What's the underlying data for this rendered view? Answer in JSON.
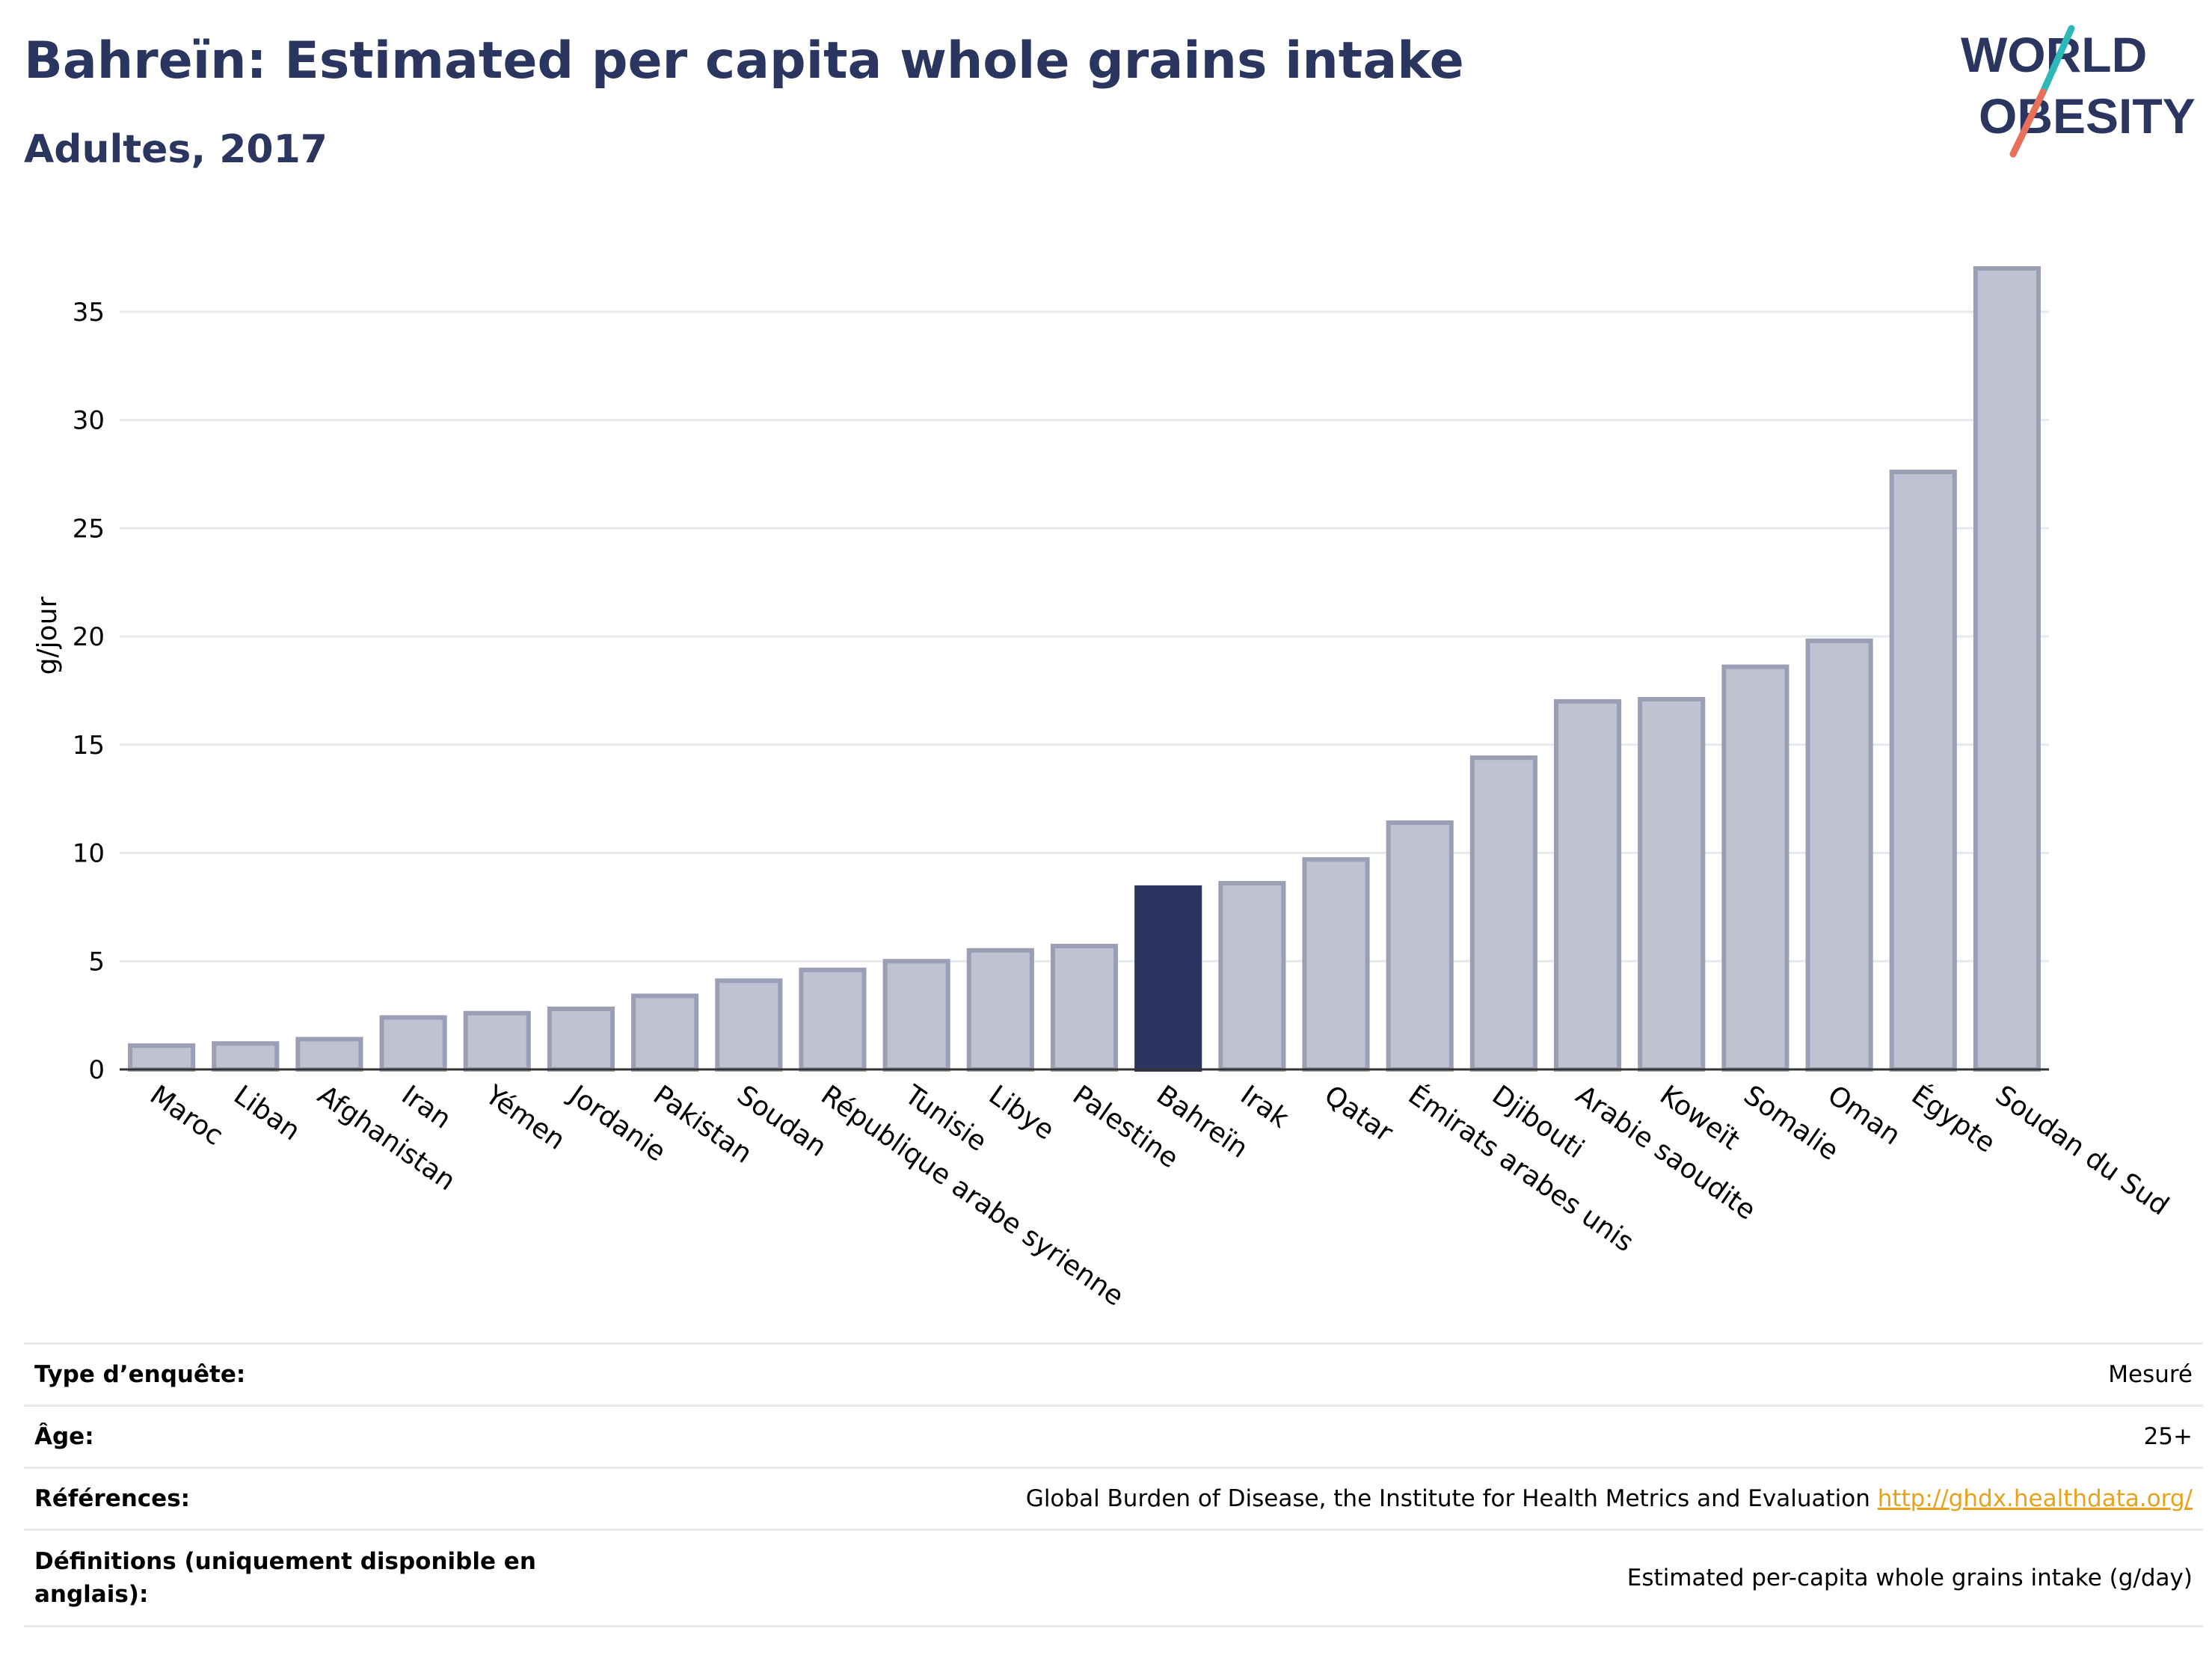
{
  "header": {
    "title": "Bahreïn: Estimated per capita whole grains intake",
    "subtitle": "Adultes, 2017"
  },
  "logo": {
    "line1": "WORLD",
    "line2": "OBESITY",
    "icon": "world-obesity-logo"
  },
  "colors": {
    "highlight": "#2a3560",
    "bar": "#bfc2d0",
    "bar_stroke": "#9a9fb5",
    "title": "#2a3560",
    "link": "#e8a21a"
  },
  "chart_data": {
    "type": "bar",
    "title": "Bahreïn: Estimated per capita whole grains intake",
    "subtitle": "Adultes, 2017",
    "xlabel": "",
    "ylabel": "g/jour",
    "ylim": [
      0,
      38
    ],
    "yticks": [
      0,
      5,
      10,
      15,
      20,
      25,
      30,
      35
    ],
    "grid": true,
    "highlight": "Bahreïn",
    "categories": [
      "Maroc",
      "Liban",
      "Afghanistan",
      "Iran",
      "Yémen",
      "Jordanie",
      "Pakistan",
      "Soudan",
      "République arabe syrienne",
      "Tunisie",
      "Libye",
      "Palestine",
      "Bahreïn",
      "Irak",
      "Qatar",
      "Émirats arabes unis",
      "Djibouti",
      "Arabie saoudite",
      "Koweït",
      "Somalie",
      "Oman",
      "Égypte",
      "Soudan du Sud"
    ],
    "values": [
      1.1,
      1.2,
      1.4,
      2.4,
      2.6,
      2.8,
      3.4,
      4.1,
      4.6,
      5.0,
      5.5,
      5.7,
      8.4,
      8.6,
      9.7,
      11.4,
      14.4,
      17.0,
      17.1,
      18.6,
      19.8,
      27.6,
      37.0
    ]
  },
  "meta": [
    {
      "key": "Type d’enquête:",
      "value": "Mesuré"
    },
    {
      "key": "Âge:",
      "value": "25+"
    },
    {
      "key": "Références:",
      "value": "Global Burden of Disease, the Institute for Health Metrics and Evaluation",
      "link": "http://ghdx.healthdata.org/"
    },
    {
      "key": "Définitions (uniquement disponible en anglais):",
      "value": "Estimated per-capita whole grains intake (g/day)"
    }
  ]
}
